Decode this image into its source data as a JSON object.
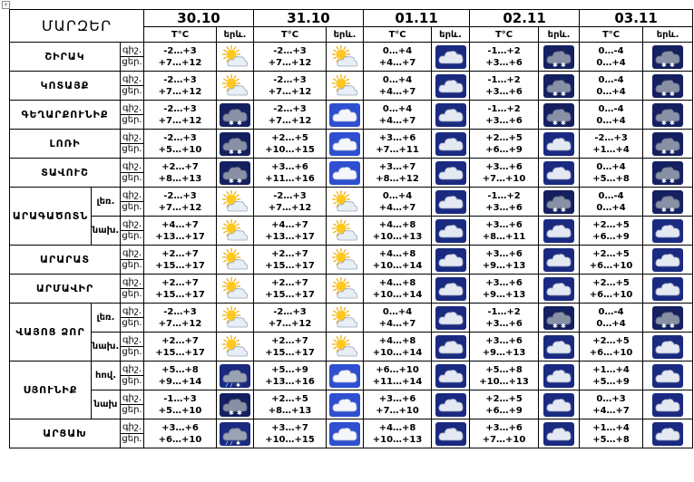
{
  "header": {
    "region_title": "ՄԱՐԶԵՐ",
    "dates": [
      "30.10",
      "31.10",
      "01.11",
      "02.11",
      "03.11"
    ],
    "temp_label": "T°C",
    "phen_label": "երև."
  },
  "day_labels": {
    "night": "գիշ.",
    "day": "ցեր."
  },
  "icon_legend": {
    "sun-cloud": "sun partly behind cloud",
    "cloud-white": "white cloud on blue background",
    "cloud-dark": "cloud on dark background",
    "cloud-snow": "dark cloud with snowflakes",
    "cloud-rain-snow": "cloud with rain and snow"
  },
  "rows": [
    {
      "region": "ՇԻՐԱԿ",
      "sub": "",
      "days": [
        {
          "night": "-2…+3",
          "day": "+7…+12",
          "icon": "sun-cloud"
        },
        {
          "night": "-2…+3",
          "day": "+7…+12",
          "icon": "sun-cloud"
        },
        {
          "night": "0…+4",
          "day": "+4…+7",
          "icon": "cloud-dark"
        },
        {
          "night": "-1…+2",
          "day": "+3…+6",
          "icon": "cloud-snow"
        },
        {
          "night": "0…-4",
          "day": "0…+4",
          "icon": "cloud-snow"
        }
      ]
    },
    {
      "region": "ԿՈՏԱՅՔ",
      "sub": "",
      "days": [
        {
          "night": "-2…+3",
          "day": "+7…+12",
          "icon": "sun-cloud"
        },
        {
          "night": "-2…+3",
          "day": "+7…+12",
          "icon": "sun-cloud"
        },
        {
          "night": "0…+4",
          "day": "+4…+7",
          "icon": "cloud-dark"
        },
        {
          "night": "-1…+2",
          "day": "+3…+6",
          "icon": "cloud-snow"
        },
        {
          "night": "0…-4",
          "day": "0…+4",
          "icon": "cloud-snow"
        }
      ]
    },
    {
      "region": "ԳԵՂԱՐՔՈՒՆԻՔ",
      "sub": "",
      "days": [
        {
          "night": "-2…+3",
          "day": "+7…+12",
          "icon": "cloud-snow"
        },
        {
          "night": "-2…+3",
          "day": "+7…+12",
          "icon": "cloud-white"
        },
        {
          "night": "0…+4",
          "day": "+4…+7",
          "icon": "cloud-dark"
        },
        {
          "night": "-1…+2",
          "day": "+3…+6",
          "icon": "cloud-snow"
        },
        {
          "night": "0…-4",
          "day": "0…+4",
          "icon": "cloud-snow"
        }
      ]
    },
    {
      "region": "ԼՈՌԻ",
      "sub": "",
      "days": [
        {
          "night": "-2…+3",
          "day": "+5…+10",
          "icon": "cloud-snow"
        },
        {
          "night": "+2…+5",
          "day": "+10…+15",
          "icon": "cloud-white"
        },
        {
          "night": "+3…+6",
          "day": "+7…+11",
          "icon": "cloud-dark"
        },
        {
          "night": "+2…+5",
          "day": "+6…+9",
          "icon": "cloud-dark"
        },
        {
          "night": "-2…+3",
          "day": "+1…+4",
          "icon": "cloud-snow"
        }
      ]
    },
    {
      "region": "ՏԱՎՈՒՇ",
      "sub": "",
      "days": [
        {
          "night": "+2…+7",
          "day": "+8…+13",
          "icon": "cloud-snow"
        },
        {
          "night": "+3…+6",
          "day": "+11…+16",
          "icon": "cloud-white"
        },
        {
          "night": "+3…+7",
          "day": "+8…+12",
          "icon": "cloud-dark"
        },
        {
          "night": "+3…+6",
          "day": "+7…+10",
          "icon": "cloud-dark"
        },
        {
          "night": "0…+4",
          "day": "+5…+8",
          "icon": "cloud-snow"
        }
      ]
    },
    {
      "region": "ԱՐԱԳԱԾՈՏՆ",
      "sub": "լեռ.",
      "days": [
        {
          "night": "-2…+3",
          "day": "+7…+12",
          "icon": "sun-cloud"
        },
        {
          "night": "-2…+3",
          "day": "+7…+12",
          "icon": "sun-cloud"
        },
        {
          "night": "0…+4",
          "day": "+4…+7",
          "icon": "cloud-dark"
        },
        {
          "night": "-1…+2",
          "day": "+3…+6",
          "icon": "cloud-snow"
        },
        {
          "night": "0…-4",
          "day": "0…+4",
          "icon": "cloud-snow"
        }
      ]
    },
    {
      "region": "",
      "sub": "նախ.",
      "days": [
        {
          "night": "+4…+7",
          "day": "+13…+17",
          "icon": "sun-cloud"
        },
        {
          "night": "+4…+7",
          "day": "+13…+17",
          "icon": "sun-cloud"
        },
        {
          "night": "+4…+8",
          "day": "+10…+13",
          "icon": "cloud-dark"
        },
        {
          "night": "+3…+6",
          "day": "+8…+11",
          "icon": "cloud-dark"
        },
        {
          "night": "+2…+5",
          "day": "+6…+9",
          "icon": "cloud-dark"
        }
      ]
    },
    {
      "region": "ԱՐԱՐԱՏ",
      "sub": "",
      "days": [
        {
          "night": "+2…+7",
          "day": "+15…+17",
          "icon": "sun-cloud"
        },
        {
          "night": "+2…+7",
          "day": "+15…+17",
          "icon": "sun-cloud"
        },
        {
          "night": "+4…+8",
          "day": "+10…+14",
          "icon": "cloud-dark"
        },
        {
          "night": "+3…+6",
          "day": "+9…+13",
          "icon": "cloud-dark"
        },
        {
          "night": "+2…+5",
          "day": "+6…+10",
          "icon": "cloud-dark"
        }
      ]
    },
    {
      "region": "ԱՐՄԱՎԻՐ",
      "sub": "",
      "days": [
        {
          "night": "+2…+7",
          "day": "+15…+17",
          "icon": "sun-cloud"
        },
        {
          "night": "+2…+7",
          "day": "+15…+17",
          "icon": "sun-cloud"
        },
        {
          "night": "+4…+8",
          "day": "+10…+14",
          "icon": "cloud-dark"
        },
        {
          "night": "+3…+6",
          "day": "+9…+13",
          "icon": "cloud-dark"
        },
        {
          "night": "+2…+5",
          "day": "+6…+10",
          "icon": "cloud-dark"
        }
      ]
    },
    {
      "region": "ՎԱՅՈՑ ՁՈՐ",
      "sub": "լեռ.",
      "days": [
        {
          "night": "-2…+3",
          "day": "+7…+12",
          "icon": "sun-cloud"
        },
        {
          "night": "-2…+3",
          "day": "+7…+12",
          "icon": "sun-cloud"
        },
        {
          "night": "0…+4",
          "day": "+4…+7",
          "icon": "cloud-dark"
        },
        {
          "night": "-1…+2",
          "day": "+3…+6",
          "icon": "cloud-snow"
        },
        {
          "night": "0…-4",
          "day": "0…+4",
          "icon": "cloud-snow"
        }
      ]
    },
    {
      "region": "",
      "sub": "նախ.",
      "days": [
        {
          "night": "+2…+7",
          "day": "+15…+17",
          "icon": "sun-cloud"
        },
        {
          "night": "+2…+7",
          "day": "+15…+17",
          "icon": "sun-cloud"
        },
        {
          "night": "+4…+8",
          "day": "+10…+14",
          "icon": "cloud-dark"
        },
        {
          "night": "+3…+6",
          "day": "+9…+13",
          "icon": "cloud-dark"
        },
        {
          "night": "+2…+5",
          "day": "+6…+10",
          "icon": "cloud-dark"
        }
      ]
    },
    {
      "region": "ՍՅՈՒՆԻՔ",
      "sub": "հով.",
      "days": [
        {
          "night": "+5…+8",
          "day": "+9…+14",
          "icon": "cloud-rain-snow"
        },
        {
          "night": "+5…+9",
          "day": "+13…+16",
          "icon": "cloud-white"
        },
        {
          "night": "+6…+10",
          "day": "+11…+14",
          "icon": "cloud-dark"
        },
        {
          "night": "+5…+8",
          "day": "+10…+13",
          "icon": "cloud-dark"
        },
        {
          "night": "+1…+4",
          "day": "+5…+9",
          "icon": "cloud-dark"
        }
      ]
    },
    {
      "region": "",
      "sub": "նախ",
      "days": [
        {
          "night": "-1…+3",
          "day": "+5…+10",
          "icon": "cloud-snow"
        },
        {
          "night": "+2…+5",
          "day": "+8…+13",
          "icon": "cloud-white"
        },
        {
          "night": "+3…+6",
          "day": "+7…+10",
          "icon": "cloud-dark"
        },
        {
          "night": "+2…+5",
          "day": "+6…+9",
          "icon": "cloud-dark"
        },
        {
          "night": "0…+3",
          "day": "+4…+7",
          "icon": "cloud-dark"
        }
      ]
    },
    {
      "region": "ԱՐՑԱԽ",
      "sub": "",
      "days": [
        {
          "night": "+3…+6",
          "day": "+6…+10",
          "icon": "cloud-rain-snow"
        },
        {
          "night": "+3…+7",
          "day": "+10…+15",
          "icon": "cloud-white"
        },
        {
          "night": "+4…+8",
          "day": "+10…+13",
          "icon": "cloud-dark"
        },
        {
          "night": "+3…+6",
          "day": "+7…+10",
          "icon": "cloud-dark"
        },
        {
          "night": "+1…+4",
          "day": "+5…+8",
          "icon": "cloud-dark"
        }
      ]
    }
  ]
}
